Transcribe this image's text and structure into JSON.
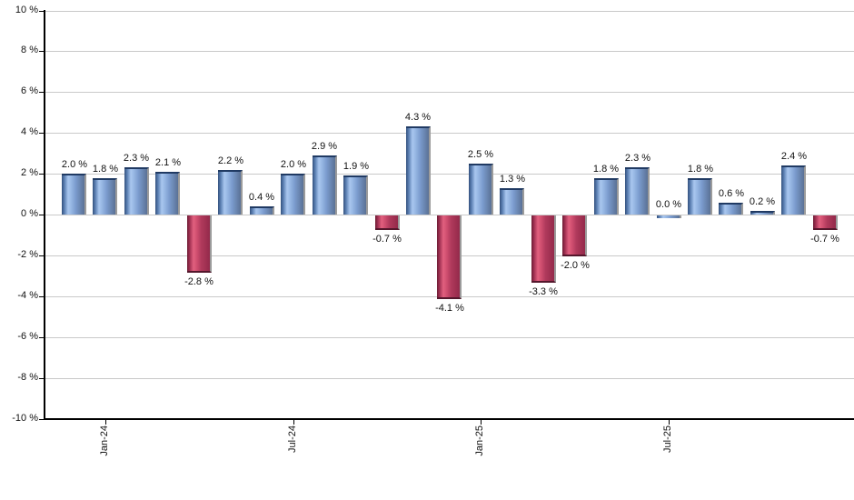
{
  "chart_data": {
    "type": "bar",
    "title": "",
    "xlabel": "",
    "ylabel": "",
    "ylim": [
      -10,
      10
    ],
    "grid": "horizontal",
    "legend": "none",
    "bars": [
      {
        "value": 2.0,
        "label": "2.0 %"
      },
      {
        "value": 1.8,
        "label": "1.8 %"
      },
      {
        "value": 2.3,
        "label": "2.3 %"
      },
      {
        "value": 2.1,
        "label": "2.1 %"
      },
      {
        "value": -2.8,
        "label": "-2.8 %"
      },
      {
        "value": 2.2,
        "label": "2.2 %"
      },
      {
        "value": 0.4,
        "label": "0.4 %"
      },
      {
        "value": 2.0,
        "label": "2.0 %"
      },
      {
        "value": 2.9,
        "label": "2.9 %"
      },
      {
        "value": 1.9,
        "label": "1.9 %"
      },
      {
        "value": -0.7,
        "label": "-0.7 %"
      },
      {
        "value": 4.3,
        "label": "4.3 %"
      },
      {
        "value": -4.1,
        "label": "-4.1 %"
      },
      {
        "value": 2.5,
        "label": "2.5 %"
      },
      {
        "value": 1.3,
        "label": "1.3 %"
      },
      {
        "value": -3.3,
        "label": "-3.3 %"
      },
      {
        "value": -2.0,
        "label": "-2.0 %"
      },
      {
        "value": 1.8,
        "label": "1.8 %"
      },
      {
        "value": 2.3,
        "label": "2.3 %"
      },
      {
        "value": 0.0,
        "label": "0.0 %"
      },
      {
        "value": 1.8,
        "label": "1.8 %"
      },
      {
        "value": 0.6,
        "label": "0.6 %"
      },
      {
        "value": 0.2,
        "label": "0.2 %"
      },
      {
        "value": 2.4,
        "label": "2.4 %"
      },
      {
        "value": -0.7,
        "label": "-0.7 %"
      }
    ],
    "x_ticks": [
      {
        "label": "Jan-24",
        "bar_index": 1
      },
      {
        "label": "Jul-24",
        "bar_index": 7
      },
      {
        "label": "Jan-25",
        "bar_index": 13
      },
      {
        "label": "Jul-25",
        "bar_index": 19
      }
    ],
    "y_ticks": [
      {
        "label": "10 %",
        "value": 10
      },
      {
        "label": "8 %",
        "value": 8
      },
      {
        "label": "6 %",
        "value": 6
      },
      {
        "label": "4 %",
        "value": 4
      },
      {
        "label": "2 %",
        "value": 2
      },
      {
        "label": "0 %",
        "value": 0
      },
      {
        "label": "-2 %",
        "value": -2
      },
      {
        "label": "-4 %",
        "value": -4
      },
      {
        "label": "-6 %",
        "value": -6
      },
      {
        "label": "-8 %",
        "value": -8
      },
      {
        "label": "-10 %",
        "value": -10
      }
    ],
    "colors": {
      "background": "#ffffff",
      "gridline": "#c9c9c9",
      "axis": "#000000",
      "label_text": "#111111",
      "bar_shadow": "#9b9b9b",
      "positive_edge": "#33517e",
      "positive_highlight": "#a9c7ef",
      "positive_mid": "#7a9bcd",
      "positive_end": "#5a7195",
      "positive_cap": "#203a63",
      "negative_edge": "#6d1c34",
      "negative_highlight": "#e2607f",
      "negative_mid": "#b03a5c",
      "negative_end": "#93294a",
      "negative_cap": "#54172c"
    }
  }
}
